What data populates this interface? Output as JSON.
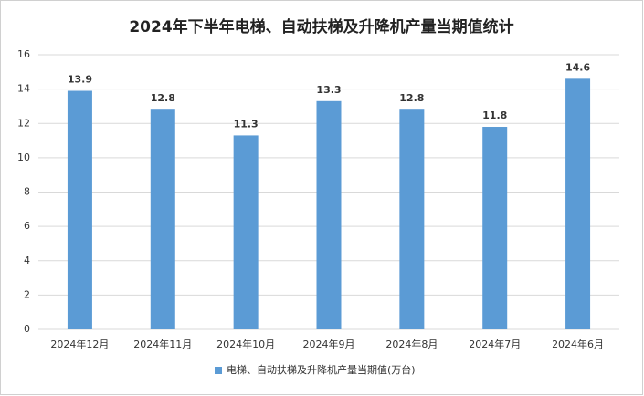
{
  "chart_data": {
    "type": "bar",
    "title": "2024年下半年电梯、自动扶梯及升降机产量当期值统计",
    "categories": [
      "2024年12月",
      "2024年11月",
      "2024年10月",
      "2024年9月",
      "2024年8月",
      "2024年7月",
      "2024年6月"
    ],
    "series": [
      {
        "name": "电梯、自动扶梯及升降机产量当期值(万台)",
        "color": "#5b9bd5",
        "values": [
          13.9,
          12.8,
          11.3,
          13.3,
          12.8,
          11.8,
          14.6
        ]
      }
    ],
    "ylim": [
      0,
      16
    ],
    "yticks": [
      0,
      2,
      4,
      6,
      8,
      10,
      12,
      14,
      16
    ],
    "grid": true,
    "legend": "bottom"
  }
}
